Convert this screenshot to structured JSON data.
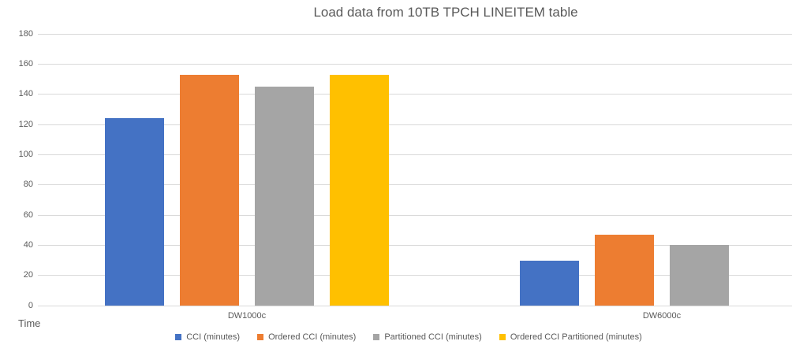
{
  "chart_data": {
    "type": "bar",
    "title": "Load data from 10TB TPCH LINEITEM table",
    "categories": [
      "DW1000c",
      "DW6000c"
    ],
    "series": [
      {
        "name": "CCI (minutes)",
        "color": "#4472C4",
        "values": [
          124,
          30
        ]
      },
      {
        "name": "Ordered CCI (minutes)",
        "color": "#ED7D31",
        "values": [
          153,
          47
        ]
      },
      {
        "name": "Partitioned CCI (minutes)",
        "color": "#A5A5A5",
        "values": [
          145,
          40
        ]
      },
      {
        "name": "Ordered CCI Partitioned (minutes)",
        "color": "#FFC000",
        "values": [
          153,
          0
        ]
      }
    ],
    "xlabel": "",
    "ylabel": "Time",
    "ylim": [
      0,
      180
    ],
    "ytick_step": 20,
    "yticks": [
      "0",
      "20",
      "40",
      "60",
      "80",
      "100",
      "120",
      "140",
      "160",
      "180"
    ],
    "grid": true,
    "legend_position": "bottom",
    "text_color": "#595959",
    "gridline_color": "#D9D9D9",
    "background_color": "#FFFFFF"
  }
}
